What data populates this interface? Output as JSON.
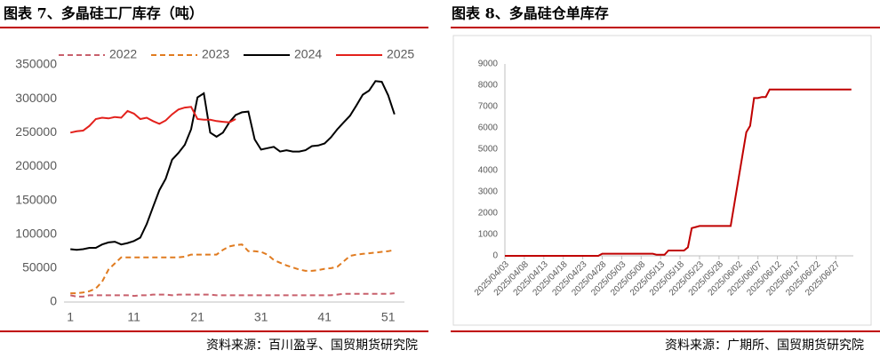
{
  "chart_data": [
    {
      "type": "line",
      "title": "图表 7、多晶硅工厂库存（吨）",
      "source": "资料来源：百川盈孚、国贸期货研究院",
      "x": [
        1,
        2,
        3,
        4,
        5,
        6,
        7,
        8,
        9,
        10,
        11,
        12,
        13,
        14,
        15,
        16,
        17,
        18,
        19,
        20,
        21,
        22,
        23,
        24,
        25,
        26,
        27,
        28,
        29,
        30,
        31,
        32,
        33,
        34,
        35,
        36,
        37,
        38,
        39,
        40,
        41,
        42,
        43,
        44,
        45,
        46,
        47,
        48,
        49,
        50,
        51,
        52
      ],
      "xlim": [
        0,
        53
      ],
      "xticks": [
        1,
        11,
        21,
        31,
        41,
        51
      ],
      "ylim": [
        0,
        350000
      ],
      "yticks": [
        0,
        50000,
        100000,
        150000,
        200000,
        250000,
        300000,
        350000
      ],
      "grid": false,
      "legend": "top",
      "series": [
        {
          "name": "2022",
          "color": "#c8606c",
          "style": "dashed",
          "values": [
            10000,
            8000,
            8000,
            10000,
            10000,
            10000,
            10000,
            10000,
            10000,
            10000,
            9000,
            10000,
            10000,
            11000,
            11000,
            11000,
            10000,
            11000,
            11000,
            11000,
            11000,
            11000,
            11000,
            10000,
            10000,
            10000,
            10000,
            10000,
            10000,
            10000,
            10000,
            10000,
            10000,
            10000,
            10000,
            10000,
            10000,
            10000,
            10000,
            10000,
            10000,
            10000,
            11000,
            12000,
            12000,
            12000,
            12000,
            12000,
            12000,
            12000,
            12000,
            13000
          ]
        },
        {
          "name": "2023",
          "color": "#e07b20",
          "style": "dashed",
          "values": [
            13000,
            13000,
            14000,
            16000,
            20000,
            30000,
            48000,
            57000,
            66000,
            66000,
            66000,
            66000,
            66000,
            66000,
            66000,
            66000,
            66000,
            66000,
            67000,
            70000,
            70000,
            70000,
            70000,
            70000,
            77000,
            82000,
            84000,
            85000,
            75000,
            75000,
            74000,
            70000,
            62000,
            58000,
            54000,
            51000,
            48000,
            46000,
            46000,
            47000,
            49000,
            50000,
            52000,
            60000,
            68000,
            70000,
            71000,
            72000,
            73000,
            74000,
            75000,
            77000
          ]
        },
        {
          "name": "2024",
          "color": "#000000",
          "style": "solid",
          "values": [
            78000,
            77000,
            78000,
            80000,
            80000,
            85000,
            88000,
            89000,
            85000,
            87000,
            90000,
            95000,
            115000,
            140000,
            165000,
            182000,
            210000,
            220000,
            232000,
            255000,
            302000,
            308000,
            250000,
            244000,
            250000,
            265000,
            276000,
            280000,
            281000,
            240000,
            225000,
            227000,
            229000,
            222000,
            224000,
            222000,
            222000,
            224000,
            230000,
            231000,
            234000,
            243000,
            255000,
            265000,
            275000,
            290000,
            306000,
            312000,
            326000,
            325000,
            305000,
            277000
          ]
        },
        {
          "name": "2025",
          "color": "#e3211c",
          "style": "solid",
          "values": [
            250000,
            252000,
            253000,
            260000,
            270000,
            272000,
            271000,
            273000,
            272000,
            282000,
            278000,
            270000,
            272000,
            267000,
            263000,
            268000,
            277000,
            284000,
            287000,
            288000,
            270000,
            269000,
            269000,
            267000,
            266000,
            265000,
            270000,
            null,
            null,
            null,
            null,
            null,
            null,
            null,
            null,
            null,
            null,
            null,
            null,
            null,
            null,
            null,
            null,
            null,
            null,
            null,
            null,
            null,
            null,
            null,
            null,
            null
          ]
        }
      ]
    },
    {
      "type": "line",
      "title": "图表 8、多晶硅仓单库存",
      "source": "资料来源：广期所、国贸期货研究院",
      "categories": [
        "2025/04/03",
        null,
        null,
        null,
        null,
        "2025/04/08",
        null,
        null,
        null,
        null,
        "2025/04/13",
        null,
        null,
        null,
        null,
        "2025/04/18",
        null,
        null,
        null,
        null,
        "2025/04/23",
        null,
        null,
        null,
        null,
        "2025/04/28",
        null,
        null,
        null,
        null,
        "2025/05/03",
        null,
        null,
        null,
        null,
        "2025/05/08",
        null,
        null,
        null,
        null,
        "2025/05/13",
        null,
        null,
        null,
        null,
        "2025/05/18",
        null,
        null,
        null,
        null,
        "2025/05/23",
        null,
        null,
        null,
        null,
        "2025/05/28",
        null,
        null,
        null,
        null,
        "2025/06/02",
        null,
        null,
        null,
        null,
        "2025/06/07",
        null,
        null,
        null,
        null,
        "2025/06/12",
        null,
        null,
        null,
        null,
        "2025/06/17",
        null,
        null,
        null,
        null,
        "2025/06/22",
        null,
        null,
        null,
        null,
        "2025/06/27",
        null,
        null,
        null,
        null
      ],
      "ylim": [
        0,
        9000
      ],
      "yticks": [
        0,
        1000,
        2000,
        3000,
        4000,
        5000,
        6000,
        7000,
        8000,
        9000
      ],
      "grid": false,
      "series": [
        {
          "name": null,
          "color": "#c00000",
          "style": "solid",
          "values": [
            0,
            0,
            0,
            0,
            0,
            0,
            0,
            0,
            0,
            0,
            0,
            0,
            0,
            0,
            0,
            0,
            0,
            0,
            0,
            0,
            0,
            0,
            0,
            0,
            0,
            100,
            100,
            100,
            100,
            100,
            100,
            100,
            100,
            100,
            100,
            100,
            100,
            100,
            100,
            50,
            50,
            50,
            250,
            250,
            250,
            250,
            250,
            400,
            1300,
            1350,
            1400,
            1400,
            1400,
            1400,
            1400,
            1400,
            1400,
            1400,
            1400,
            2500,
            3600,
            4700,
            5800,
            6100,
            7400,
            7400,
            7450,
            7450,
            7800,
            7800,
            7800,
            7800,
            7800,
            7800,
            7800,
            7800,
            7800,
            7800,
            7800,
            7800,
            7800,
            7800,
            7800,
            7800,
            7800,
            7800,
            7800,
            7800,
            7800,
            7800
          ]
        }
      ]
    }
  ]
}
